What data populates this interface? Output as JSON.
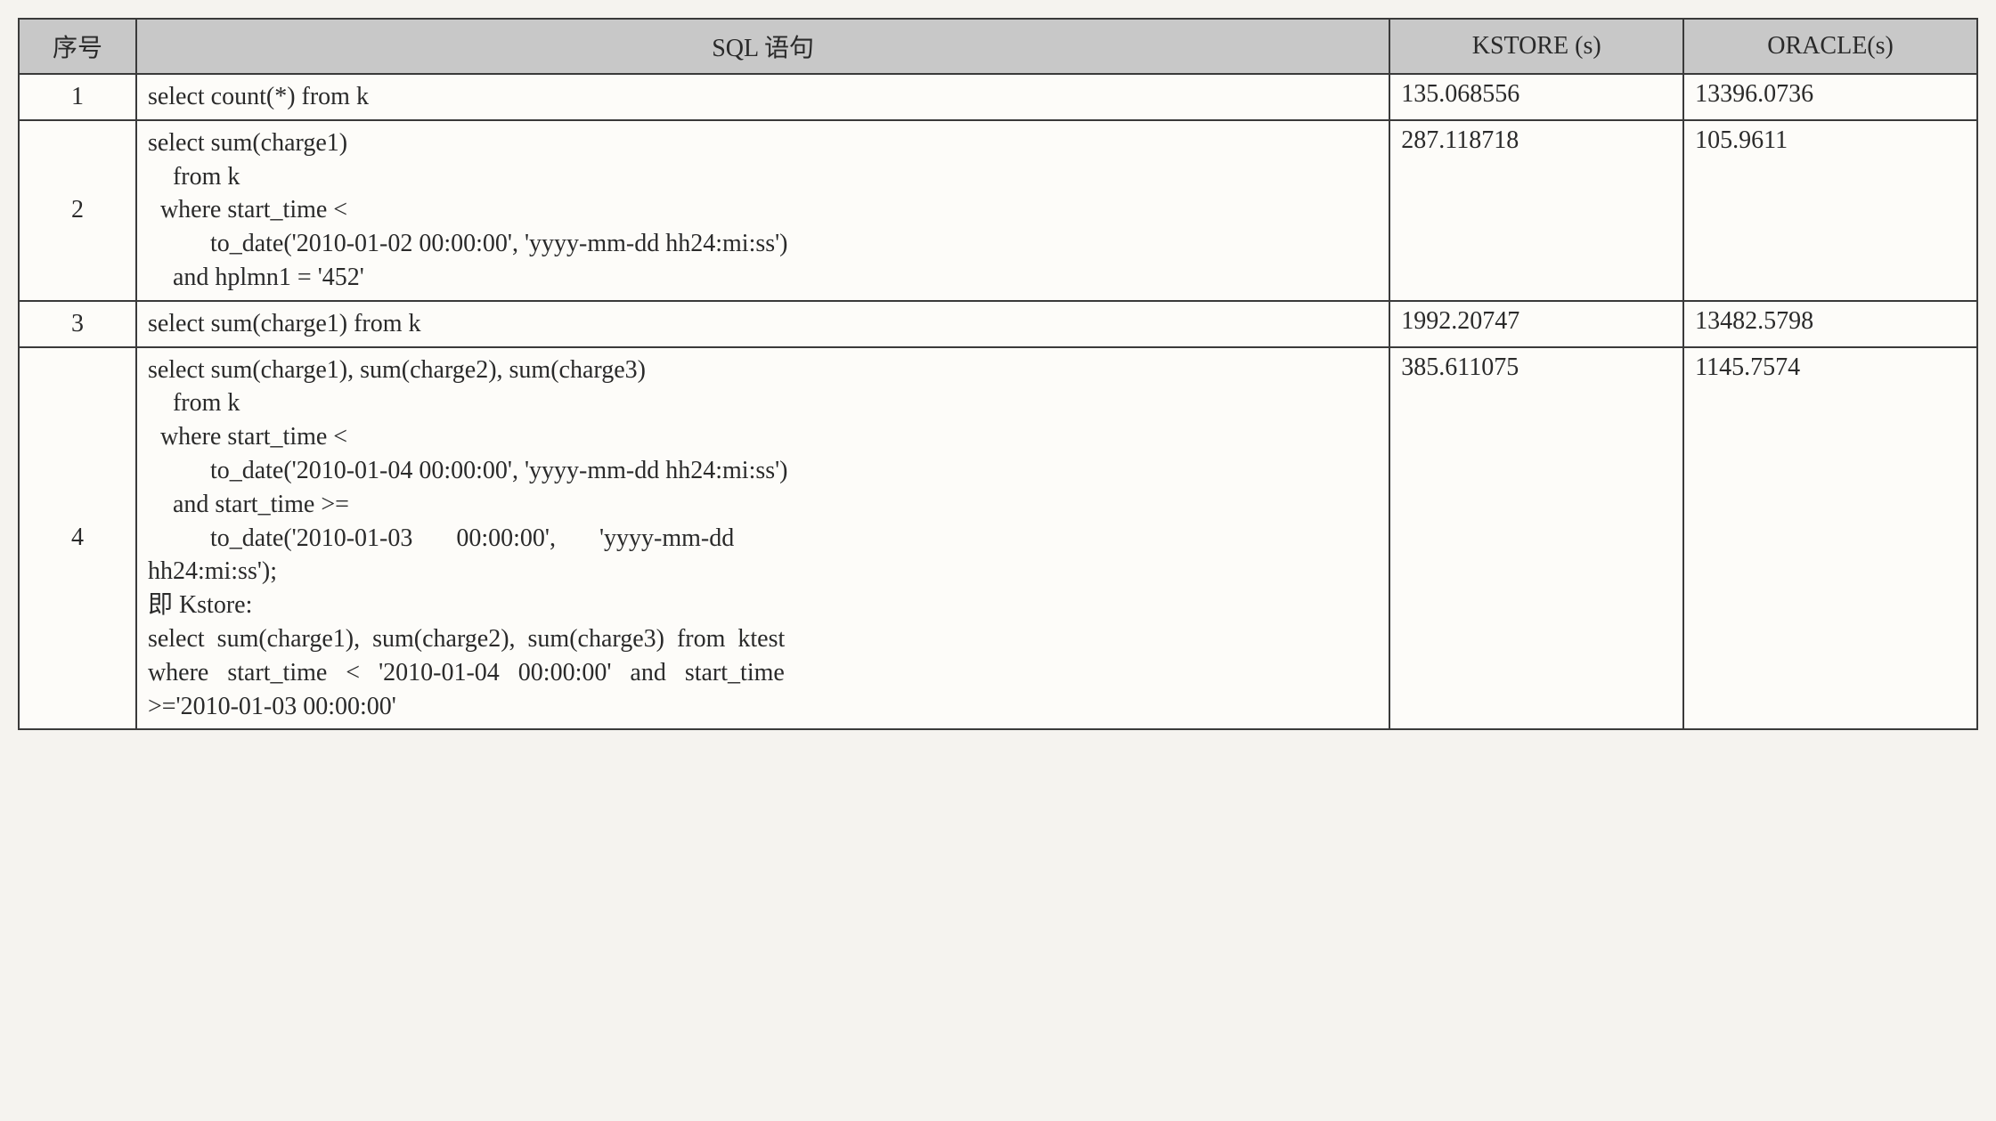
{
  "table": {
    "columns": [
      "序号",
      "SQL 语句",
      "KSTORE (s)",
      "ORACLE(s)"
    ],
    "column_widths_pct": [
      6,
      64,
      15,
      15
    ],
    "header_bg_color": "#c8c8c8",
    "border_color": "#3a3a3a",
    "background_color": "#fdfcf9",
    "page_bg_color": "#f5f3ef",
    "font_family": "Times New Roman",
    "font_size_pt": 28,
    "text_color": "#2a2a2a",
    "rows": [
      {
        "seq": "1",
        "sql": "select count(*) from k",
        "kstore": "135.068556",
        "oracle": "13396.0736"
      },
      {
        "seq": "2",
        "sql": "select sum(charge1)\n    from k\n  where start_time <\n          to_date('2010-01-02 00:00:00', 'yyyy-mm-dd hh24:mi:ss')\n    and hplmn1 = '452'",
        "kstore": "287.118718",
        "oracle": "105.9611"
      },
      {
        "seq": "3",
        "sql": "select sum(charge1) from k",
        "kstore": "1992.20747",
        "oracle": "13482.5798"
      },
      {
        "seq": "4",
        "sql": "select sum(charge1), sum(charge2), sum(charge3)\n    from k\n  where start_time <\n          to_date('2010-01-04 00:00:00', 'yyyy-mm-dd hh24:mi:ss')\n    and start_time >=\n          to_date('2010-01-03       00:00:00',       'yyyy-mm-dd\nhh24:mi:ss');\n即 Kstore:\nselect  sum(charge1),  sum(charge2),  sum(charge3)  from  ktest\nwhere   start_time   <   '2010-01-04   00:00:00'   and   start_time\n>='2010-01-03 00:00:00'",
        "kstore": "385.611075",
        "oracle": "1145.7574"
      }
    ]
  }
}
